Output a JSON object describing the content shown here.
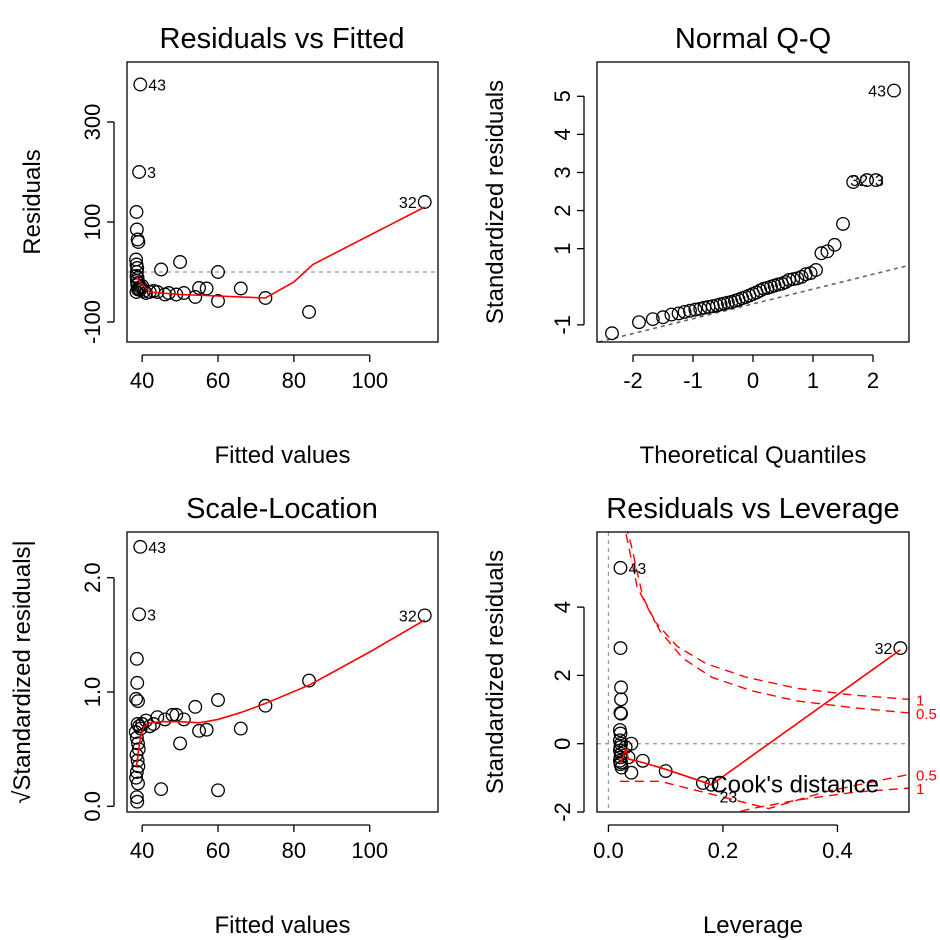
{
  "chart_data": [
    {
      "type": "scatter",
      "title": "Residuals vs Fitted",
      "xlabel": "Fitted values",
      "ylabel": "Residuals",
      "xlim": [
        36,
        118
      ],
      "ylim": [
        -140,
        420
      ],
      "xticks": [
        {
          "v": 40,
          "label": "40"
        },
        {
          "v": 60,
          "label": "60"
        },
        {
          "v": 80,
          "label": "80"
        },
        {
          "v": 100,
          "label": "100"
        }
      ],
      "yticks": [
        {
          "v": -100,
          "label": "-100"
        },
        {
          "v": 100,
          "label": "100"
        },
        {
          "v": 300,
          "label": "300"
        }
      ],
      "reference_line": {
        "y": 0
      },
      "points": [
        [
          39.5,
          375
        ],
        [
          39.2,
          200
        ],
        [
          114.5,
          140
        ],
        [
          38.5,
          120
        ],
        [
          38.6,
          85
        ],
        [
          38.8,
          65
        ],
        [
          39.0,
          60
        ],
        [
          38.4,
          25
        ],
        [
          38.5,
          15
        ],
        [
          38.7,
          8
        ],
        [
          38.6,
          0
        ],
        [
          38.5,
          -8
        ],
        [
          38.8,
          -12
        ],
        [
          38.6,
          -18
        ],
        [
          38.9,
          -22
        ],
        [
          38.7,
          -26
        ],
        [
          39.1,
          -32
        ],
        [
          39.4,
          -36
        ],
        [
          38.5,
          -40
        ],
        [
          38.9,
          -35
        ],
        [
          39.6,
          -30
        ],
        [
          40,
          -28
        ],
        [
          40.5,
          -38
        ],
        [
          41,
          -42
        ],
        [
          42,
          -40
        ],
        [
          43,
          -38
        ],
        [
          44,
          -40
        ],
        [
          45,
          5
        ],
        [
          46,
          -45
        ],
        [
          47,
          -42
        ],
        [
          49,
          -45
        ],
        [
          50,
          20
        ],
        [
          51,
          -42
        ],
        [
          54,
          -50
        ],
        [
          55,
          -32
        ],
        [
          57,
          -33
        ],
        [
          60,
          0
        ],
        [
          60,
          -58
        ],
        [
          66,
          -33
        ],
        [
          72.5,
          -52
        ],
        [
          84,
          -80
        ]
      ],
      "smooth": [
        [
          38.5,
          -10
        ],
        [
          40,
          -25
        ],
        [
          42,
          -40
        ],
        [
          45,
          -42
        ],
        [
          50,
          -45
        ],
        [
          60,
          -48
        ],
        [
          72.5,
          -52
        ],
        [
          80,
          -20
        ],
        [
          85,
          15
        ],
        [
          114.5,
          130
        ]
      ],
      "labels": [
        {
          "text": "43",
          "x": 39.5,
          "y": 375,
          "side": "right"
        },
        {
          "text": "3",
          "x": 39.2,
          "y": 200,
          "side": "right"
        },
        {
          "text": "32",
          "x": 114.5,
          "y": 140,
          "side": "left"
        }
      ]
    },
    {
      "type": "scatter",
      "title": "Normal Q-Q",
      "xlabel": "Theoretical Quantiles",
      "ylabel": "Standardized residuals",
      "xlim": [
        -2.6,
        2.6
      ],
      "ylim": [
        -1.45,
        5.9
      ],
      "xticks": [
        {
          "v": -2,
          "label": "-2"
        },
        {
          "v": -1,
          "label": "-1"
        },
        {
          "v": 0,
          "label": "0"
        },
        {
          "v": 1,
          "label": "1"
        },
        {
          "v": 2,
          "label": "2"
        }
      ],
      "yticks": [
        {
          "v": -1,
          "label": "-1"
        },
        {
          "v": 1,
          "label": "1"
        },
        {
          "v": 2,
          "label": "2"
        },
        {
          "v": 3,
          "label": "3"
        },
        {
          "v": 4,
          "label": "4"
        },
        {
          "v": 5,
          "label": "5"
        }
      ],
      "qq_line": [
        [
          -2.7,
          -1.5
        ],
        [
          2.7,
          0.6
        ]
      ],
      "points": [
        [
          -2.35,
          -1.22
        ],
        [
          -1.9,
          -0.93
        ],
        [
          -1.67,
          -0.85
        ],
        [
          -1.5,
          -0.8
        ],
        [
          -1.36,
          -0.73
        ],
        [
          -1.24,
          -0.7
        ],
        [
          -1.14,
          -0.66
        ],
        [
          -1.05,
          -0.63
        ],
        [
          -0.96,
          -0.6
        ],
        [
          -0.88,
          -0.58
        ],
        [
          -0.81,
          -0.55
        ],
        [
          -0.74,
          -0.53
        ],
        [
          -0.67,
          -0.51
        ],
        [
          -0.6,
          -0.49
        ],
        [
          -0.54,
          -0.46
        ],
        [
          -0.48,
          -0.44
        ],
        [
          -0.42,
          -0.42
        ],
        [
          -0.36,
          -0.4
        ],
        [
          -0.3,
          -0.37
        ],
        [
          -0.24,
          -0.34
        ],
        [
          -0.18,
          -0.3
        ],
        [
          -0.12,
          -0.27
        ],
        [
          -0.06,
          -0.23
        ],
        [
          0.0,
          -0.19
        ],
        [
          0.06,
          -0.15
        ],
        [
          0.12,
          -0.1
        ],
        [
          0.18,
          -0.05
        ],
        [
          0.24,
          -0.03
        ],
        [
          0.3,
          0.0
        ],
        [
          0.36,
          0.03
        ],
        [
          0.42,
          0.06
        ],
        [
          0.48,
          0.08
        ],
        [
          0.54,
          0.12
        ],
        [
          0.6,
          0.18
        ],
        [
          0.67,
          0.2
        ],
        [
          0.74,
          0.22
        ],
        [
          0.81,
          0.26
        ],
        [
          0.88,
          0.33
        ],
        [
          0.96,
          0.36
        ],
        [
          1.05,
          0.44
        ],
        [
          1.14,
          0.88
        ],
        [
          1.24,
          0.93
        ],
        [
          1.36,
          1.1
        ],
        [
          1.5,
          1.65
        ],
        [
          1.67,
          2.75
        ],
        [
          1.9,
          2.8
        ],
        [
          2.05,
          2.8
        ],
        [
          2.35,
          5.15
        ]
      ],
      "labels": [
        {
          "text": "43",
          "x": 2.35,
          "y": 5.15,
          "side": "left"
        },
        {
          "text": "3",
          "x": 1.9,
          "y": 2.8,
          "side": "right"
        },
        {
          "text": "32",
          "x": 2.05,
          "y": 2.8,
          "side": "left"
        }
      ]
    },
    {
      "type": "scatter",
      "title": "Scale-Location",
      "xlabel": "Fitted values",
      "ylabel": "√Standardized residuals|",
      "xlim": [
        36,
        118
      ],
      "ylim": [
        -0.05,
        2.4
      ],
      "xticks": [
        {
          "v": 40,
          "label": "40"
        },
        {
          "v": 60,
          "label": "60"
        },
        {
          "v": 80,
          "label": "80"
        },
        {
          "v": 100,
          "label": "100"
        }
      ],
      "yticks": [
        {
          "v": 0.0,
          "label": "0.0"
        },
        {
          "v": 1.0,
          "label": "1.0"
        },
        {
          "v": 2.0,
          "label": "2.0"
        }
      ],
      "points": [
        [
          39.5,
          2.27
        ],
        [
          39.2,
          1.68
        ],
        [
          114.5,
          1.67
        ],
        [
          38.6,
          1.29
        ],
        [
          38.7,
          1.08
        ],
        [
          38.4,
          0.94
        ],
        [
          38.9,
          0.92
        ],
        [
          38.8,
          0.72
        ],
        [
          39.2,
          0.7
        ],
        [
          39.6,
          0.68
        ],
        [
          38.3,
          0.65
        ],
        [
          38.6,
          0.6
        ],
        [
          38.9,
          0.55
        ],
        [
          39.1,
          0.5
        ],
        [
          38.5,
          0.45
        ],
        [
          38.8,
          0.4
        ],
        [
          39.0,
          0.35
        ],
        [
          38.6,
          0.3
        ],
        [
          38.4,
          0.25
        ],
        [
          38.9,
          0.2
        ],
        [
          38.6,
          0.08
        ],
        [
          38.7,
          0.04
        ],
        [
          40,
          0.72
        ],
        [
          41,
          0.75
        ],
        [
          42,
          0.7
        ],
        [
          43,
          0.72
        ],
        [
          44,
          0.78
        ],
        [
          45,
          0.15
        ],
        [
          46,
          0.76
        ],
        [
          48,
          0.8
        ],
        [
          49,
          0.8
        ],
        [
          50,
          0.55
        ],
        [
          51,
          0.76
        ],
        [
          54,
          0.87
        ],
        [
          55,
          0.66
        ],
        [
          57,
          0.67
        ],
        [
          60,
          0.93
        ],
        [
          60,
          0.14
        ],
        [
          66,
          0.68
        ],
        [
          72.5,
          0.88
        ],
        [
          84,
          1.1
        ]
      ],
      "smooth": [
        [
          38.5,
          0.35
        ],
        [
          39.5,
          0.6
        ],
        [
          40.5,
          0.7
        ],
        [
          42,
          0.73
        ],
        [
          45,
          0.74
        ],
        [
          50,
          0.74
        ],
        [
          55,
          0.73
        ],
        [
          60,
          0.76
        ],
        [
          66,
          0.82
        ],
        [
          72.5,
          0.9
        ],
        [
          84,
          1.06
        ],
        [
          100,
          1.35
        ],
        [
          114.5,
          1.63
        ]
      ],
      "labels": [
        {
          "text": "43",
          "x": 39.5,
          "y": 2.27,
          "side": "right"
        },
        {
          "text": "3",
          "x": 39.2,
          "y": 1.68,
          "side": "right"
        },
        {
          "text": "32",
          "x": 114.5,
          "y": 1.67,
          "side": "left"
        }
      ]
    },
    {
      "type": "scatter",
      "title": "Residuals vs Leverage",
      "xlabel": "Leverage",
      "ylabel": "Standardized residuals",
      "xlim": [
        -0.02,
        0.525
      ],
      "ylim": [
        -2,
        6.2
      ],
      "xticks": [
        {
          "v": 0.0,
          "label": "0.0"
        },
        {
          "v": 0.2,
          "label": "0.2"
        },
        {
          "v": 0.4,
          "label": "0.4"
        }
      ],
      "yticks": [
        {
          "v": -2,
          "label": "-2"
        },
        {
          "v": 0,
          "label": "0"
        },
        {
          "v": 2,
          "label": "2"
        },
        {
          "v": 4,
          "label": "4"
        }
      ],
      "reference_line": {
        "x": 0,
        "y": 0
      },
      "legend_text": "Cook's distance",
      "cook_contours": [
        {
          "label": "1",
          "upper": [
            [
              0.021,
              7.0
            ],
            [
              0.03,
              6.2
            ],
            [
              0.05,
              4.6
            ],
            [
              0.08,
              3.6
            ],
            [
              0.12,
              2.85
            ],
            [
              0.17,
              2.35
            ],
            [
              0.24,
              1.95
            ],
            [
              0.33,
              1.62
            ],
            [
              0.43,
              1.42
            ],
            [
              0.525,
              1.3
            ]
          ],
          "lower": [
            [
              0.18,
              -2.2
            ],
            [
              0.25,
              -1.9
            ],
            [
              0.33,
              -1.65
            ],
            [
              0.43,
              -1.42
            ],
            [
              0.525,
              -1.3
            ]
          ],
          "label_y_upper": 1.3,
          "label_y_lower": -1.3
        },
        {
          "label": "0.5",
          "upper": [
            [
              0.03,
              6.4
            ],
            [
              0.04,
              5.8
            ],
            [
              0.06,
              4.3
            ],
            [
              0.09,
              3.3
            ],
            [
              0.13,
              2.5
            ],
            [
              0.18,
              1.95
            ],
            [
              0.25,
              1.55
            ],
            [
              0.33,
              1.25
            ],
            [
              0.43,
              1.05
            ],
            [
              0.525,
              0.9
            ]
          ],
          "lower": [
            [
              0.02,
              -1.1
            ],
            [
              0.06,
              -1.1
            ],
            [
              0.09,
              -1.1
            ],
            [
              0.28,
              -1.9
            ],
            [
              0.38,
              -1.4
            ],
            [
              0.525,
              -0.9
            ]
          ],
          "label_y_upper": 0.9,
          "label_y_lower": -0.9
        }
      ],
      "points": [
        [
          0.021,
          5.15
        ],
        [
          0.021,
          2.8
        ],
        [
          0.022,
          1.65
        ],
        [
          0.022,
          1.3
        ],
        [
          0.021,
          0.9
        ],
        [
          0.022,
          0.88
        ],
        [
          0.02,
          0.4
        ],
        [
          0.021,
          0.3
        ],
        [
          0.02,
          0.1
        ],
        [
          0.022,
          0.0
        ],
        [
          0.021,
          -0.1
        ],
        [
          0.02,
          -0.2
        ],
        [
          0.022,
          -0.3
        ],
        [
          0.021,
          -0.4
        ],
        [
          0.02,
          -0.5
        ],
        [
          0.022,
          -0.55
        ],
        [
          0.021,
          -0.6
        ],
        [
          0.023,
          -0.7
        ],
        [
          0.03,
          -0.1
        ],
        [
          0.035,
          -0.4
        ],
        [
          0.04,
          0.0
        ],
        [
          0.04,
          -0.85
        ],
        [
          0.06,
          -0.5
        ],
        [
          0.1,
          -0.8
        ],
        [
          0.165,
          -1.15
        ],
        [
          0.18,
          -1.2
        ],
        [
          0.51,
          2.8
        ]
      ],
      "smooth": [
        [
          0.021,
          -0.6
        ],
        [
          0.03,
          -0.15
        ],
        [
          0.035,
          -0.45
        ],
        [
          0.06,
          -0.55
        ],
        [
          0.1,
          -0.75
        ],
        [
          0.18,
          -1.2
        ],
        [
          0.51,
          2.75
        ]
      ],
      "labels": [
        {
          "text": "43",
          "x": 0.021,
          "y": 5.15,
          "side": "right"
        },
        {
          "text": "32",
          "x": 0.51,
          "y": 2.8,
          "side": "left"
        },
        {
          "text": "23",
          "x": 0.18,
          "y": -1.2,
          "side": "below-right"
        }
      ]
    }
  ]
}
